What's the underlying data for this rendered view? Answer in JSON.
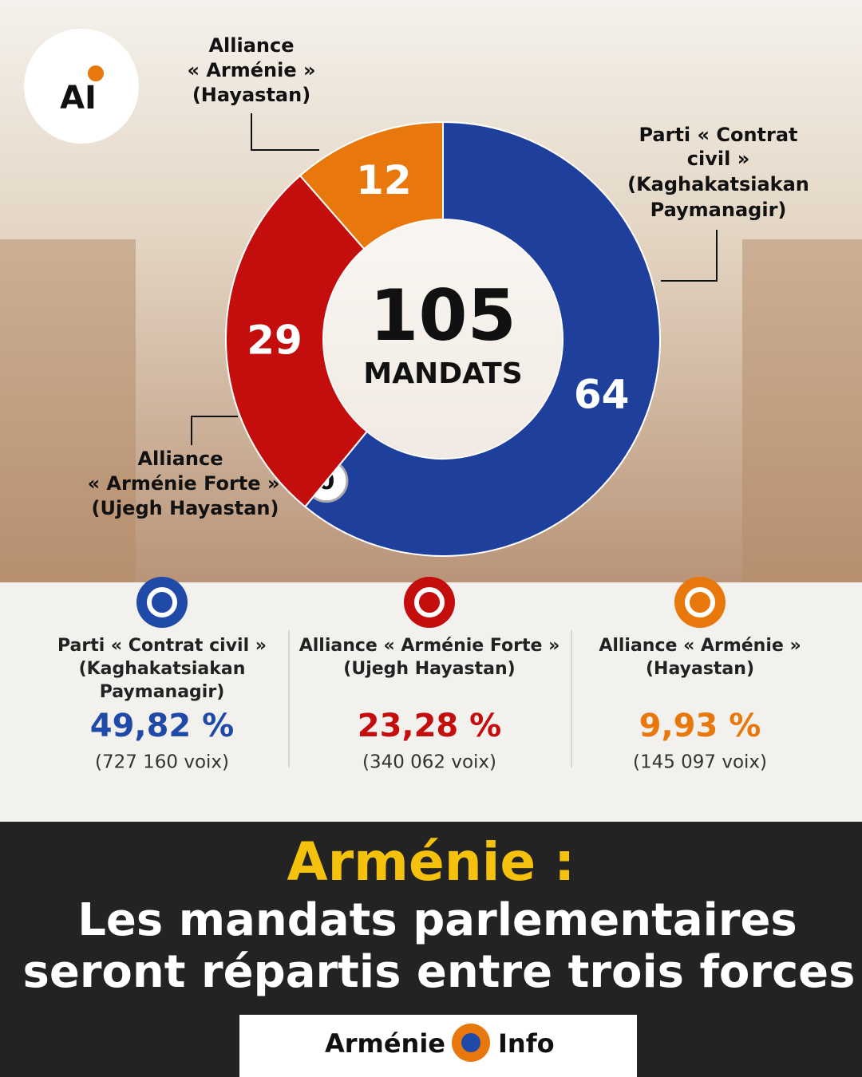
{
  "chart_data": {
    "type": "donut",
    "categories": [
      [
        "Parti « Contrat",
        "civil »",
        "(Kaghakatsiakan",
        "Paymanagir)"
      ],
      null,
      [
        "Alliance",
        "« Arménie Forte »",
        "(Ujegh Hayastan)"
      ],
      [
        "Alliance",
        "« Arménie »",
        "(Hayastan)"
      ]
    ],
    "values": [
      64,
      0,
      29,
      12
    ],
    "colors": [
      "#1f3f9c",
      "#ffffff",
      "#c40d0d",
      "#e8780c"
    ],
    "center_value": 105,
    "center_label": "MANDATS"
  },
  "logo": "AI",
  "results": [
    {
      "name": [
        "Parti « Contrat civil »",
        "(Kaghakatsiakan",
        "Paymanagir)"
      ],
      "percent": 49.82,
      "percent_label": "49,82 %",
      "votes": 727160,
      "votes_label": "(727 160 voix)",
      "color": "#1f4aa8"
    },
    {
      "name": [
        "Alliance « Arménie Forte »",
        "(Ujegh Hayastan)"
      ],
      "percent": 23.28,
      "percent_label": "23,28 %",
      "votes": 340062,
      "votes_label": "(340 062 voix)",
      "color": "#c40d0d"
    },
    {
      "name": [
        "Alliance « Arménie »",
        "(Hayastan)"
      ],
      "percent": 9.93,
      "percent_label": "9,93 %",
      "votes": 145097,
      "votes_label": "(145 097 voix)",
      "color": "#e8780c"
    }
  ],
  "headline": {
    "title": "Arménie :",
    "subtitle": [
      "Les mandats parlementaires",
      "seront répartis entre trois forces"
    ]
  },
  "brand": {
    "left": "Arménie",
    "right": "Info"
  }
}
